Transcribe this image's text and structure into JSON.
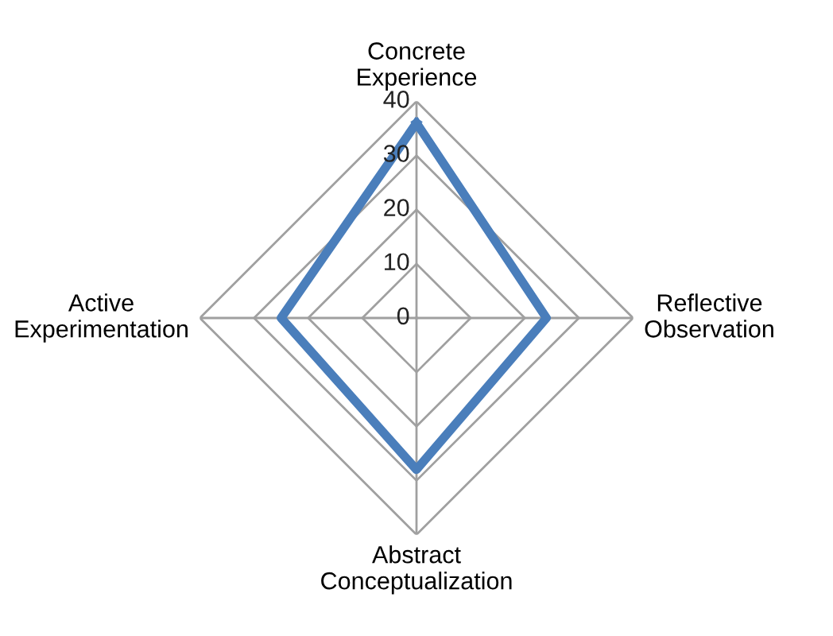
{
  "chart_data": {
    "type": "radar",
    "categories": [
      "Concrete\nExperience",
      "Reflective\nObservation",
      "Abstract\nConceptualization",
      "Active\nExperimentation"
    ],
    "series": [
      {
        "color": "#4a7ebb",
        "values": [
          36,
          24,
          28,
          25
        ]
      }
    ],
    "ylim": [
      0,
      40
    ],
    "yticks": [
      0,
      10,
      20,
      30,
      40
    ],
    "grid": true
  }
}
